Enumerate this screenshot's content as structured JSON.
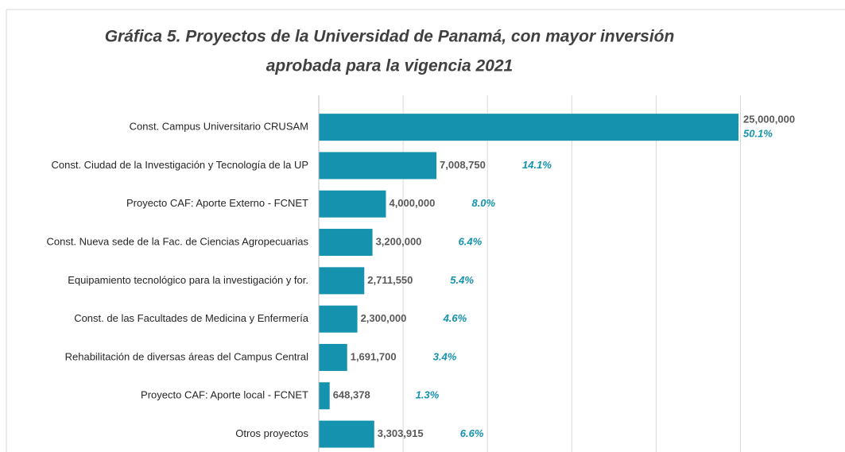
{
  "chart_data": {
    "type": "bar",
    "orientation": "horizontal",
    "title": [
      "Gráfica 5. Proyectos de la Universidad de Panamá, con mayor inversión",
      "aprobada para la vigencia 2021"
    ],
    "categories": [
      "Const. Campus Universitario CRUSAM",
      "Const. Ciudad de la Investigación y Tecnología de la UP",
      "Proyecto CAF: Aporte Externo - FCNET",
      "Const. Nueva sede de la Fac. de Ciencias Agropecuarias",
      "Equipamiento tecnológico para la investigación y for.",
      "Const. de las Facultades de Medicina y Enfermería",
      "Rehabilitación  de diversas áreas del Campus Central",
      "Proyecto CAF: Aporte local - FCNET",
      "Otros proyectos"
    ],
    "values": [
      25000000,
      7008750,
      4000000,
      3200000,
      2711550,
      2300000,
      1691700,
      648378,
      3303915
    ],
    "value_labels": [
      "25,000,000",
      "7,008,750",
      "4,000,000",
      "3,200,000",
      "2,711,550",
      "2,300,000",
      "1,691,700",
      "648,378",
      "3,303,915"
    ],
    "shares": [
      50.1,
      14.1,
      8.0,
      6.4,
      5.4,
      4.6,
      3.4,
      1.3,
      6.6
    ],
    "share_labels": [
      "50.1%",
      "14.1%",
      "8.0%",
      "6.4%",
      "5.4%",
      "4.6%",
      "3.4%",
      "1.3%",
      "6.6%"
    ],
    "color": "#1592ad",
    "xlim": [
      0,
      25000000
    ],
    "xticks": [
      0,
      5000000,
      10000000,
      15000000,
      20000000,
      25000000
    ],
    "grid": true
  }
}
